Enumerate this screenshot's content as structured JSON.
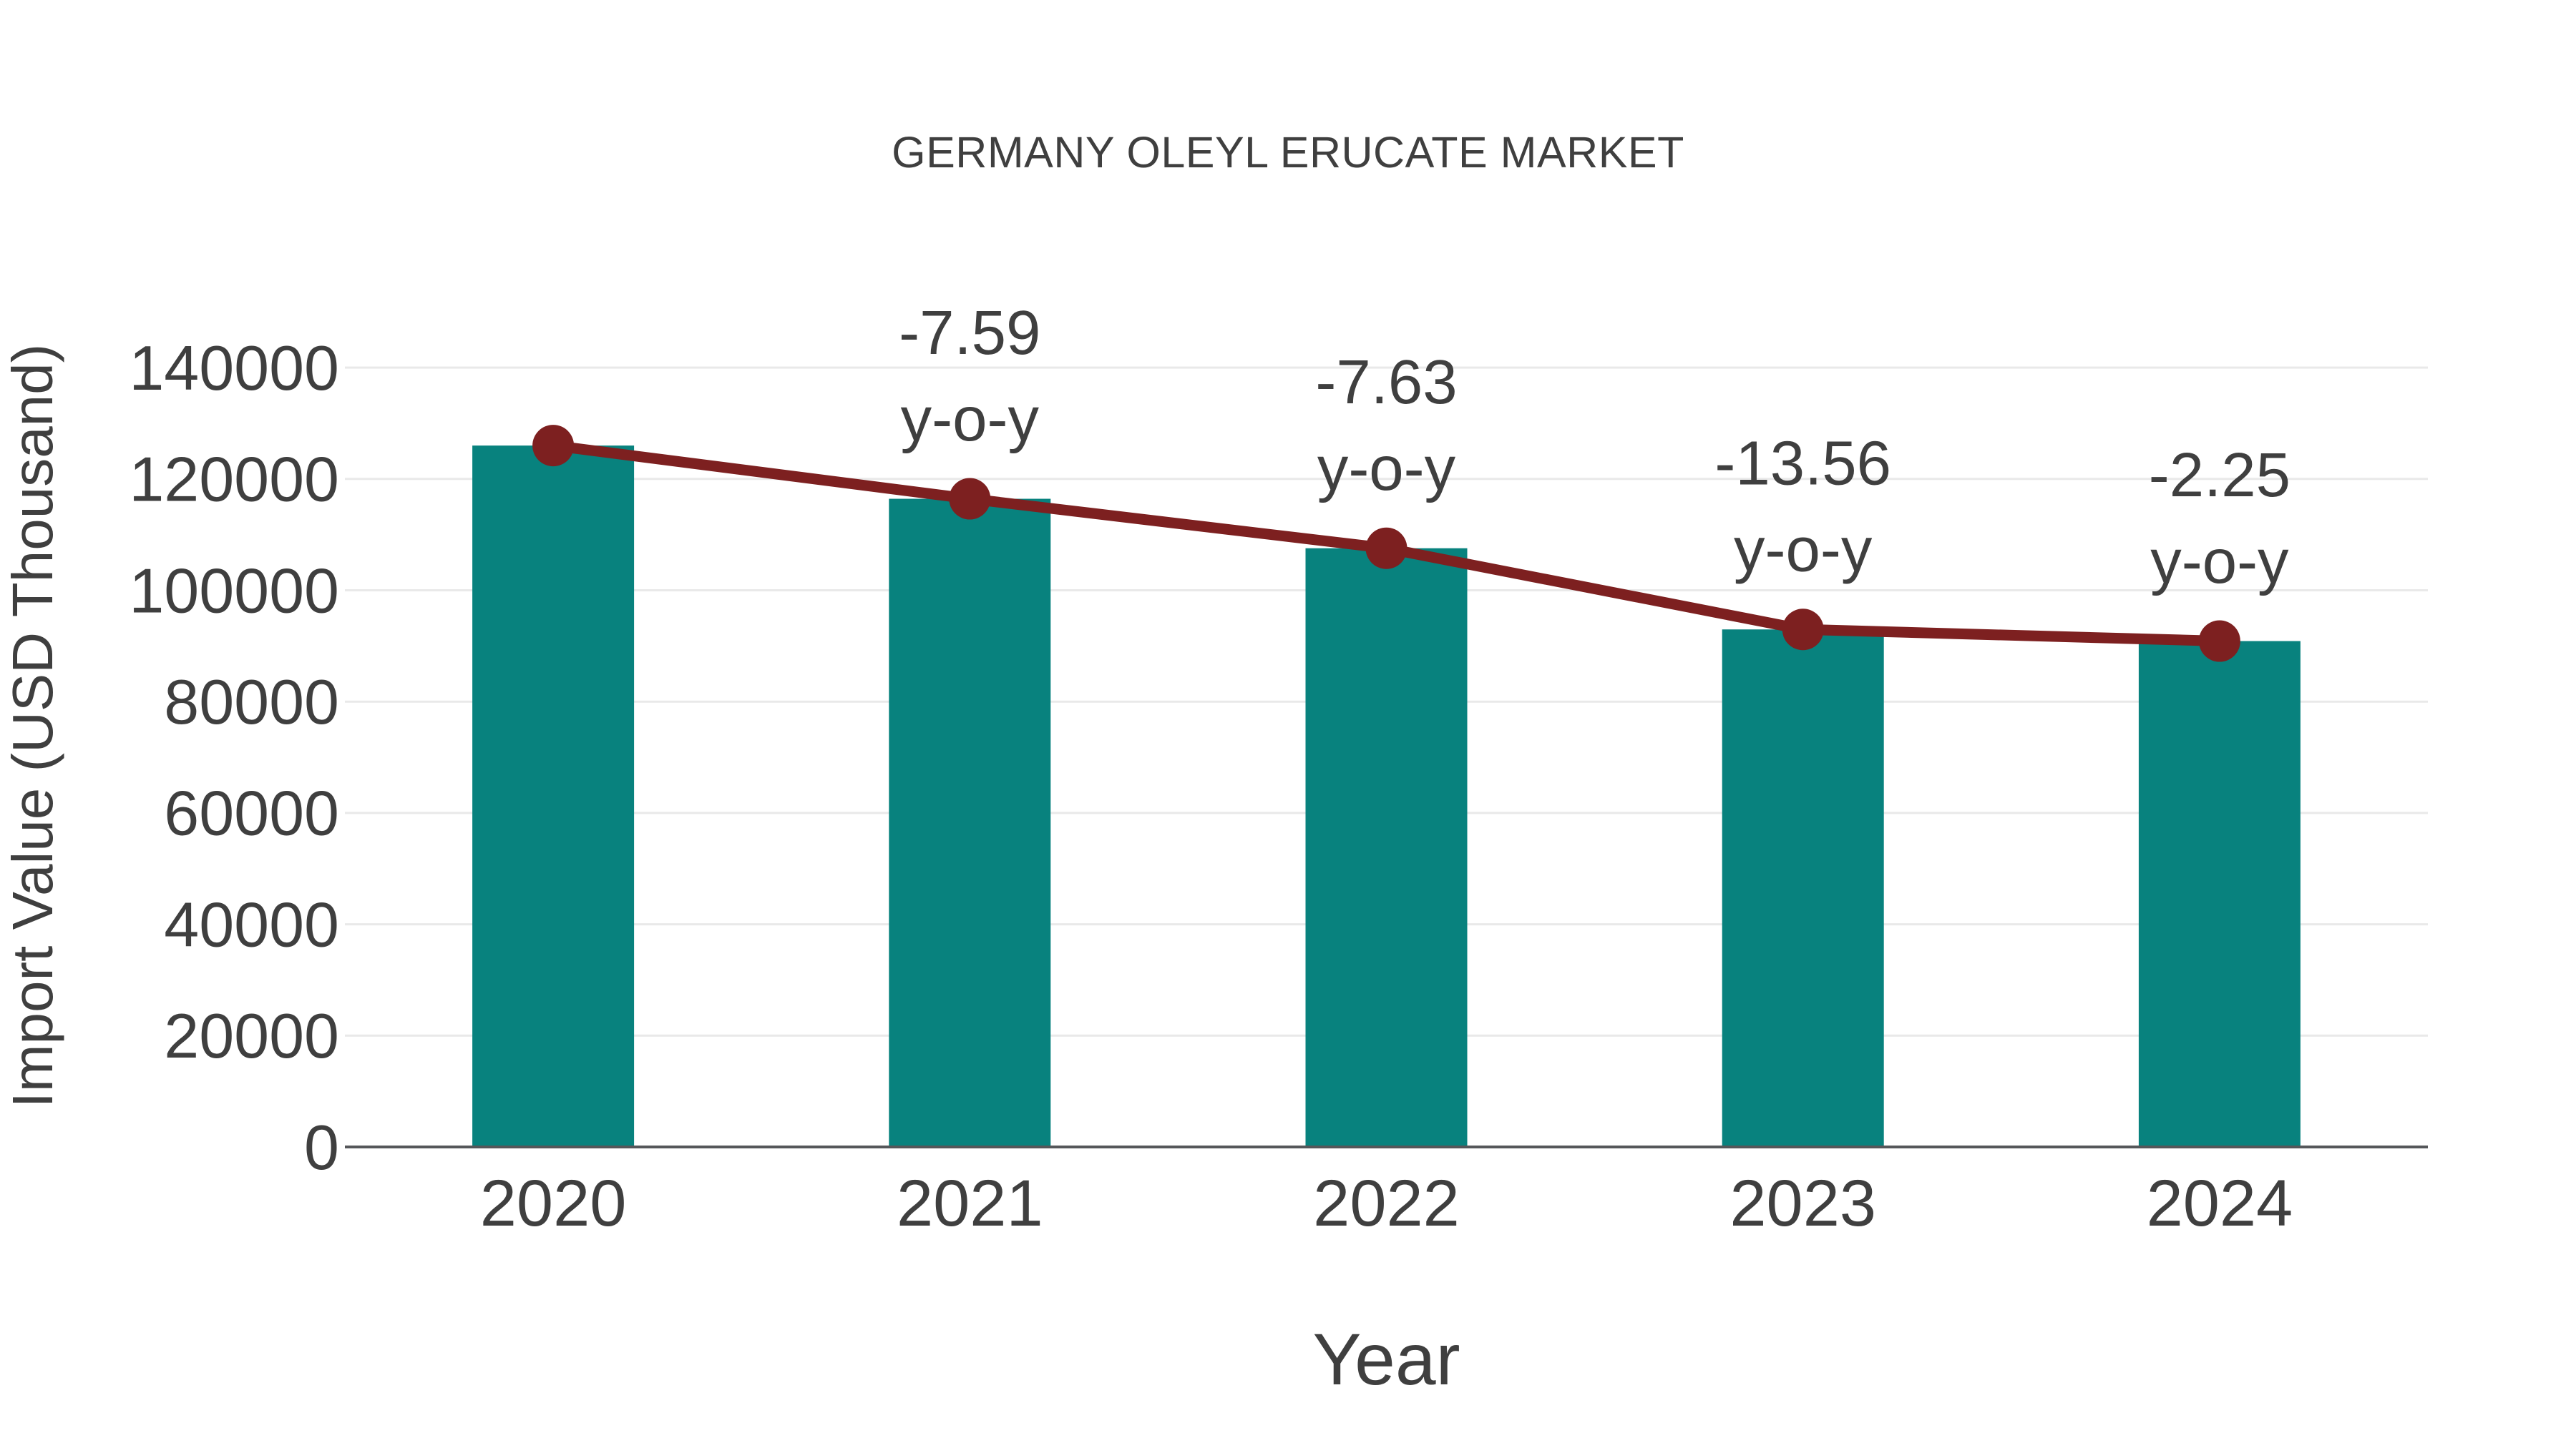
{
  "chart_data": {
    "type": "bar",
    "title": "GERMANY OLEYL ERUCATE MARKET",
    "xlabel": "Year",
    "ylabel": "Import Value (USD Thousand)",
    "categories": [
      "2020",
      "2021",
      "2022",
      "2023",
      "2024"
    ],
    "series": [
      {
        "name": "import-value-bars",
        "type": "bar",
        "color": "#08827e",
        "values": [
          126000,
          116437,
          107552,
          92968,
          90877
        ]
      },
      {
        "name": "import-value-trend",
        "type": "line",
        "color": "#7d2020",
        "values": [
          126000,
          116437,
          107552,
          92968,
          90877
        ]
      }
    ],
    "annotations": [
      {
        "category": "2021",
        "lines": [
          "-7.59",
          "y-o-y"
        ]
      },
      {
        "category": "2022",
        "lines": [
          "-7.63",
          "y-o-y"
        ]
      },
      {
        "category": "2023",
        "lines": [
          "-13.56",
          "y-o-y"
        ]
      },
      {
        "category": "2024",
        "lines": [
          "-2.25",
          "y-o-y"
        ]
      }
    ],
    "ylim": [
      0,
      140000
    ],
    "ytick_step": 20000,
    "grid": true,
    "legend_position": "none"
  },
  "colors": {
    "bar": "#08827e",
    "line": "#7d2020",
    "marker": "#7d2020",
    "text": "#3f3f3f",
    "grid": "#e9e9e9",
    "axis": "#55575a",
    "background": "#ffffff"
  }
}
